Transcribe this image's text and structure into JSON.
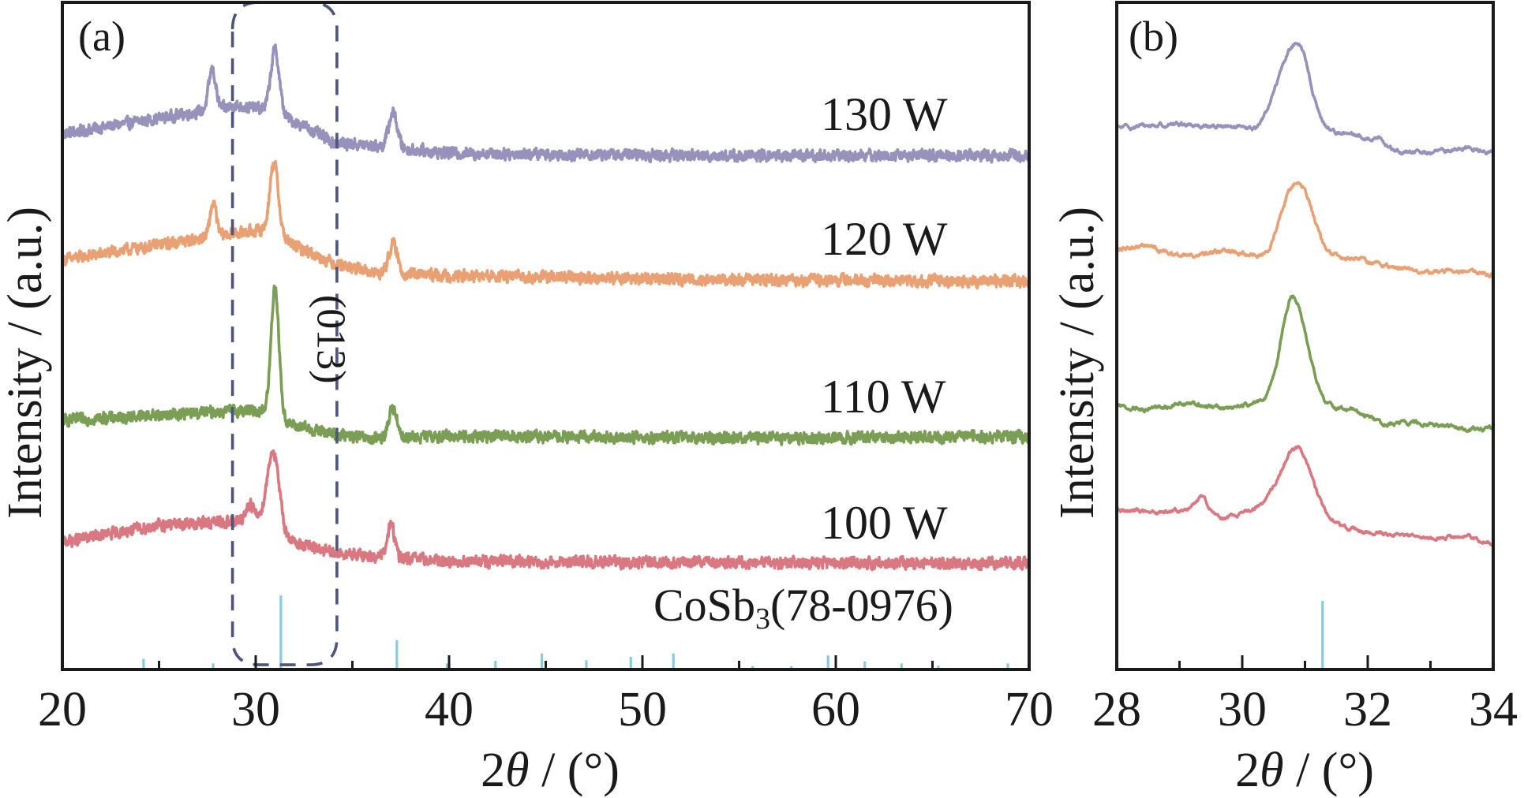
{
  "chart_data": [
    {
      "panel": "a",
      "type": "line",
      "panel_label": "(a)",
      "title": "",
      "xlabel": "2θ / (°)",
      "xlabel_parts": {
        "prefix": "2",
        "theta": "θ",
        "suffix": " / (°)"
      },
      "ylabel": "Intensity / (a.u.)",
      "xlim": [
        20,
        70
      ],
      "ylim": [
        0,
        100
      ],
      "x_ticks": [
        20,
        30,
        40,
        50,
        60,
        70
      ],
      "x_tick_labels": [
        "20",
        "30",
        "40",
        "50",
        "60",
        "70"
      ],
      "x_minor_ticks": [
        25,
        35,
        45,
        55,
        65
      ],
      "y_ticks": [],
      "grid": false,
      "series": [
        {
          "name": "130 W",
          "label": "130 W",
          "color": "#9692bb",
          "baseline": [
            [
              20,
              80.3
            ],
            [
              29,
              84.5
            ],
            [
              30.5,
              84.0
            ],
            [
              32.5,
              81.5
            ],
            [
              34,
              79.0
            ],
            [
              36,
              78.5
            ],
            [
              40,
              77.4
            ],
            [
              55,
              77.0
            ],
            [
              70,
              77.1
            ]
          ],
          "peaks": [
            {
              "center": 27.75,
              "height": 6.0,
              "width": 0.18
            },
            {
              "center": 31.0,
              "height": 9.5,
              "width": 0.22
            },
            {
              "center": 37.1,
              "height": 5.3,
              "width": 0.22
            }
          ],
          "noise": 0.9
        },
        {
          "name": "120 W",
          "label": "120 W",
          "color": "#e9a072",
          "baseline": [
            [
              20,
              61.4
            ],
            [
              28,
              65.0
            ],
            [
              30,
              65.8
            ],
            [
              31,
              65.5
            ],
            [
              32,
              63.5
            ],
            [
              34,
              61.0
            ],
            [
              36,
              59.5
            ],
            [
              40,
              59.0
            ],
            [
              55,
              58.4
            ],
            [
              70,
              58.2
            ]
          ],
          "peaks": [
            {
              "center": 27.8,
              "height": 5.0,
              "width": 0.16
            },
            {
              "center": 30.95,
              "height": 10.5,
              "width": 0.22
            },
            {
              "center": 37.1,
              "height": 4.4,
              "width": 0.22
            }
          ],
          "noise": 0.9
        },
        {
          "name": "110 W",
          "label": "110 W",
          "color": "#7b9e55",
          "baseline": [
            [
              20,
              37.3
            ],
            [
              29,
              38.8
            ],
            [
              30.5,
              38.8
            ],
            [
              32,
              36.5
            ],
            [
              34,
              35.3
            ],
            [
              36,
              34.5
            ],
            [
              40,
              35.0
            ],
            [
              55,
              34.7
            ],
            [
              70,
              34.9
            ]
          ],
          "peaks": [
            {
              "center": 31.0,
              "height": 19.5,
              "width": 0.2
            },
            {
              "center": 37.1,
              "height": 4.5,
              "width": 0.22
            }
          ],
          "noise": 0.9
        },
        {
          "name": "100 W",
          "label": "100 W",
          "color": "#d97880",
          "baseline": [
            [
              20,
              19.1
            ],
            [
              25,
              21.6
            ],
            [
              29,
              22.2
            ],
            [
              30.3,
              22.5
            ],
            [
              32,
              19.0
            ],
            [
              34,
              17.4
            ],
            [
              36,
              17.0
            ],
            [
              40,
              16.2
            ],
            [
              55,
              16.0
            ],
            [
              70,
              15.9
            ]
          ],
          "peaks": [
            {
              "center": 29.7,
              "height": 2.5,
              "width": 0.2
            },
            {
              "center": 30.9,
              "height": 11.5,
              "width": 0.3
            },
            {
              "center": 37.0,
              "height": 5.0,
              "width": 0.18
            }
          ],
          "noise": 0.9
        }
      ],
      "reference": {
        "label_main": "CoSb",
        "label_sub": "3",
        "label_rest": "(78-0976)",
        "color": "#86cbe0",
        "lines": [
          {
            "x": 24.2,
            "intensity": 1.6
          },
          {
            "x": 27.8,
            "intensity": 0.9
          },
          {
            "x": 31.3,
            "intensity": 11.1
          },
          {
            "x": 37.3,
            "intensity": 4.4
          },
          {
            "x": 39.9,
            "intensity": 0.9
          },
          {
            "x": 42.4,
            "intensity": 1.3
          },
          {
            "x": 44.8,
            "intensity": 2.4
          },
          {
            "x": 47.1,
            "intensity": 1.4
          },
          {
            "x": 49.4,
            "intensity": 1.9
          },
          {
            "x": 51.6,
            "intensity": 2.4
          },
          {
            "x": 55.7,
            "intensity": 0.5
          },
          {
            "x": 57.7,
            "intensity": 0.5
          },
          {
            "x": 59.6,
            "intensity": 2.1
          },
          {
            "x": 61.5,
            "intensity": 1.2
          },
          {
            "x": 63.4,
            "intensity": 0.9
          },
          {
            "x": 65.3,
            "intensity": 0.6
          },
          {
            "x": 68.9,
            "intensity": 0.9
          }
        ]
      },
      "annotations": [
        {
          "type": "highlight-box",
          "x_range": [
            28.8,
            34.2
          ],
          "y_range": [
            0.7,
            100
          ],
          "color": "#4b5580",
          "style": "dashed"
        },
        {
          "type": "text",
          "text": "(013)",
          "x": 33.2,
          "y": 49.5,
          "rotation": "vertical"
        }
      ]
    },
    {
      "panel": "b",
      "type": "line",
      "panel_label": "(b)",
      "title": "",
      "xlabel": "2θ / (°)",
      "xlabel_parts": {
        "prefix": "2",
        "theta": "θ",
        "suffix": " / (°)"
      },
      "ylabel": "Intensity / (a.u.)",
      "xlim": [
        28,
        34
      ],
      "ylim": [
        0,
        100
      ],
      "x_ticks": [
        28,
        30,
        32,
        34
      ],
      "x_tick_labels": [
        "28",
        "30",
        "32",
        "34"
      ],
      "x_minor_ticks": [
        29,
        31,
        33
      ],
      "y_ticks": [],
      "grid": false,
      "series": [
        {
          "name": "130 W",
          "color": "#9692bb",
          "baseline": [
            [
              28,
              81.2
            ],
            [
              29,
              81.8
            ],
            [
              30.2,
              81.0
            ],
            [
              30.5,
              83.2
            ],
            [
              31.4,
              80.8
            ],
            [
              32.0,
              79.6
            ],
            [
              32.5,
              77.5
            ],
            [
              33.0,
              77.5
            ],
            [
              33.6,
              78.2
            ],
            [
              34,
              77.5
            ]
          ],
          "peaks": [
            {
              "center": 30.78,
              "height": 9.5,
              "width": 0.2
            },
            {
              "center": 31.0,
              "height": 4.5,
              "width": 0.14
            },
            {
              "center": 32.2,
              "height": 1.2,
              "width": 0.06
            }
          ],
          "noise": 0.4
        },
        {
          "name": "120 W",
          "color": "#e9a072",
          "baseline": [
            [
              28,
              63.1
            ],
            [
              28.5,
              63.5
            ],
            [
              29.0,
              62.0
            ],
            [
              29.8,
              62.7
            ],
            [
              30.4,
              61.5
            ],
            [
              31.3,
              62.5
            ],
            [
              31.7,
              61.8
            ],
            [
              32.3,
              60.5
            ],
            [
              33.0,
              59.5
            ],
            [
              33.6,
              59.8
            ],
            [
              34,
              59.0
            ]
          ],
          "peaks": [
            {
              "center": 30.8,
              "height": 9.8,
              "width": 0.2
            },
            {
              "center": 31.05,
              "height": 4.0,
              "width": 0.14
            }
          ],
          "noise": 0.4
        },
        {
          "name": "110 W",
          "color": "#7b9e55",
          "baseline": [
            [
              28,
              39.5
            ],
            [
              28.5,
              39.0
            ],
            [
              29.0,
              39.8
            ],
            [
              29.8,
              39.2
            ],
            [
              30.3,
              40.0
            ],
            [
              31.3,
              39.5
            ],
            [
              31.8,
              38.8
            ],
            [
              32.2,
              37.0
            ],
            [
              33.0,
              36.8
            ],
            [
              33.6,
              36.0
            ],
            [
              34,
              36.2
            ]
          ],
          "peaks": [
            {
              "center": 30.85,
              "height": 14.5,
              "width": 0.2
            },
            {
              "center": 30.7,
              "height": 3.0,
              "width": 0.12
            }
          ],
          "noise": 0.4
        },
        {
          "name": "100 W",
          "color": "#d97880",
          "baseline": [
            [
              28,
              24.0
            ],
            [
              28.8,
              23.6
            ],
            [
              29.4,
              24.3
            ],
            [
              29.7,
              22.6
            ],
            [
              30.2,
              24.1
            ],
            [
              30.5,
              25.0
            ],
            [
              31.4,
              21.8
            ],
            [
              32.0,
              20.6
            ],
            [
              32.5,
              20.2
            ],
            [
              33.0,
              19.5
            ],
            [
              33.6,
              20.0
            ],
            [
              34,
              18.8
            ]
          ],
          "peaks": [
            {
              "center": 29.35,
              "height": 1.6,
              "width": 0.08
            },
            {
              "center": 30.88,
              "height": 9.5,
              "width": 0.24
            }
          ],
          "noise": 0.35
        }
      ],
      "reference": {
        "color": "#86cbe0",
        "lines": [
          {
            "x": 31.28,
            "intensity": 10.3
          }
        ]
      }
    }
  ]
}
